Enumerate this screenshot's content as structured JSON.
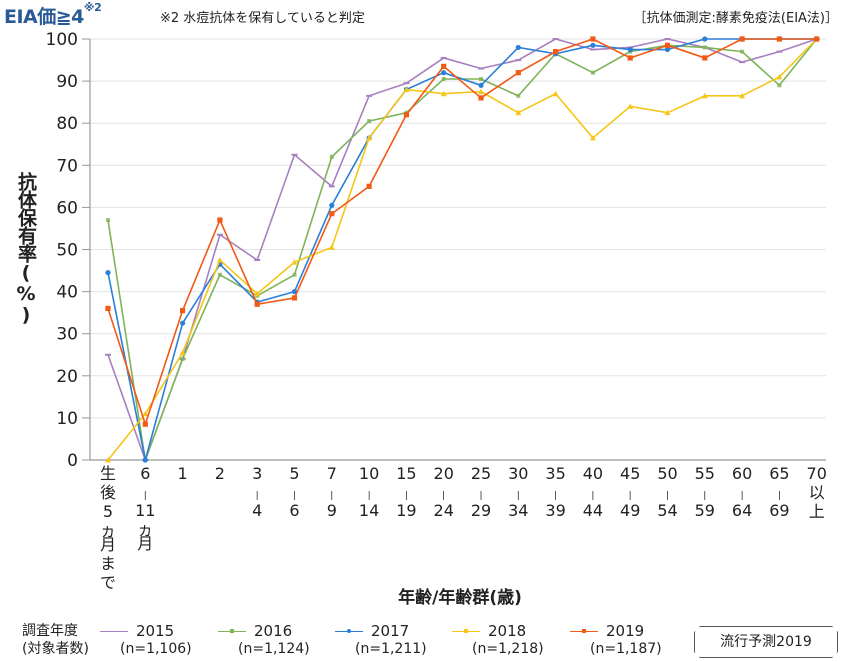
{
  "header": {
    "title": "EIA価≧4",
    "title_sup": "※2",
    "note": "※2 水痘抗体を保有していると判定",
    "method": "［抗体価測定:酵素免疫法(EIA法)］"
  },
  "axes": {
    "ylabel": "抗体保有率(%)",
    "xlabel": "年齢/年齢群(歳)"
  },
  "legend": {
    "title_line1": "調査年度",
    "title_line2": "(対象者数)",
    "items": [
      {
        "year": "2015",
        "n": "(n=1,106)",
        "color": "#a680c0"
      },
      {
        "year": "2016",
        "n": "(n=1,124)",
        "color": "#7fb35a"
      },
      {
        "year": "2017",
        "n": "(n=1,211)",
        "color": "#2a7fd8"
      },
      {
        "year": "2018",
        "n": "(n=1,218)",
        "color": "#f5c518"
      },
      {
        "year": "2019",
        "n": "(n=1,187)",
        "color": "#f05a14"
      }
    ]
  },
  "button": {
    "forecast_label": "流行予測2019"
  },
  "chart_data": {
    "type": "line",
    "title": "EIA価≧4※2",
    "subtitle": "※2 水痘抗体を保有していると判定 ［抗体価測定:酵素免疫法(EIA法)］",
    "xlabel": "年齢/年齢群(歳)",
    "ylabel": "抗体保有率(%)",
    "ylim": [
      0,
      100
    ],
    "yticks": [
      0,
      10,
      20,
      30,
      40,
      50,
      60,
      70,
      80,
      90,
      100
    ],
    "grid": true,
    "legend_position": "bottom",
    "categories": [
      "生後5ヵ月まで",
      "6-11ヵ月",
      "1",
      "2",
      "3-4",
      "5-6",
      "7-9",
      "10-14",
      "15-19",
      "20-24",
      "25-29",
      "30-34",
      "35-39",
      "40-44",
      "45-49",
      "50-54",
      "55-59",
      "60-64",
      "65-69",
      "70以上"
    ],
    "category_labels": [
      [
        "生",
        "後",
        "5",
        "ヵ",
        "月",
        "ま",
        "で"
      ],
      [
        "6",
        "-",
        "11",
        "ヵ",
        "月"
      ],
      [
        "1"
      ],
      [
        "2"
      ],
      [
        "3",
        "-",
        "4"
      ],
      [
        "5",
        "-",
        "6"
      ],
      [
        "7",
        "-",
        "9"
      ],
      [
        "10",
        "-",
        "14"
      ],
      [
        "15",
        "-",
        "19"
      ],
      [
        "20",
        "-",
        "24"
      ],
      [
        "25",
        "-",
        "29"
      ],
      [
        "30",
        "-",
        "34"
      ],
      [
        "35",
        "-",
        "39"
      ],
      [
        "40",
        "-",
        "44"
      ],
      [
        "45",
        "-",
        "49"
      ],
      [
        "50",
        "-",
        "54"
      ],
      [
        "55",
        "-",
        "59"
      ],
      [
        "60",
        "-",
        "64"
      ],
      [
        "65",
        "-",
        "69"
      ],
      [
        "70",
        "以",
        "上"
      ]
    ],
    "series": [
      {
        "name": "2015 (n=1,106)",
        "color": "#a680c0",
        "marker": "dash",
        "values": [
          25,
          0,
          24,
          53.5,
          47.5,
          72.5,
          65,
          86.5,
          89.5,
          95.5,
          93,
          95,
          100,
          97.5,
          98,
          100,
          98,
          94.5,
          97,
          100
        ]
      },
      {
        "name": "2016 (n=1,124)",
        "color": "#7fb35a",
        "marker": "cross",
        "values": [
          57,
          0,
          24,
          44,
          39,
          44,
          72,
          80.5,
          82.5,
          90.5,
          90.5,
          86.5,
          96.5,
          92,
          97,
          98.5,
          98,
          97,
          89,
          100
        ]
      },
      {
        "name": "2017 (n=1,211)",
        "color": "#2a7fd8",
        "marker": "circle",
        "values": [
          44.5,
          0,
          32.5,
          46.5,
          37.5,
          40,
          60.5,
          76.5,
          88,
          92,
          89,
          98,
          96.5,
          98.5,
          97.5,
          97.5,
          100,
          100,
          100,
          100
        ]
      },
      {
        "name": "2018 (n=1,218)",
        "color": "#f5c518",
        "marker": "triangle",
        "values": [
          0,
          11,
          25.5,
          47.5,
          39.5,
          47,
          50.5,
          76.5,
          88,
          87,
          87.5,
          82.5,
          87,
          76.5,
          84,
          82.5,
          86.5,
          86.5,
          91,
          100
        ]
      },
      {
        "name": "2019 (n=1,187)",
        "color": "#f05a14",
        "marker": "square",
        "values": [
          36,
          8.5,
          35.5,
          57,
          37,
          38.5,
          58.5,
          65,
          82,
          93.5,
          86,
          92,
          97,
          100,
          95.5,
          98.5,
          95.5,
          100,
          100,
          100
        ]
      }
    ]
  }
}
